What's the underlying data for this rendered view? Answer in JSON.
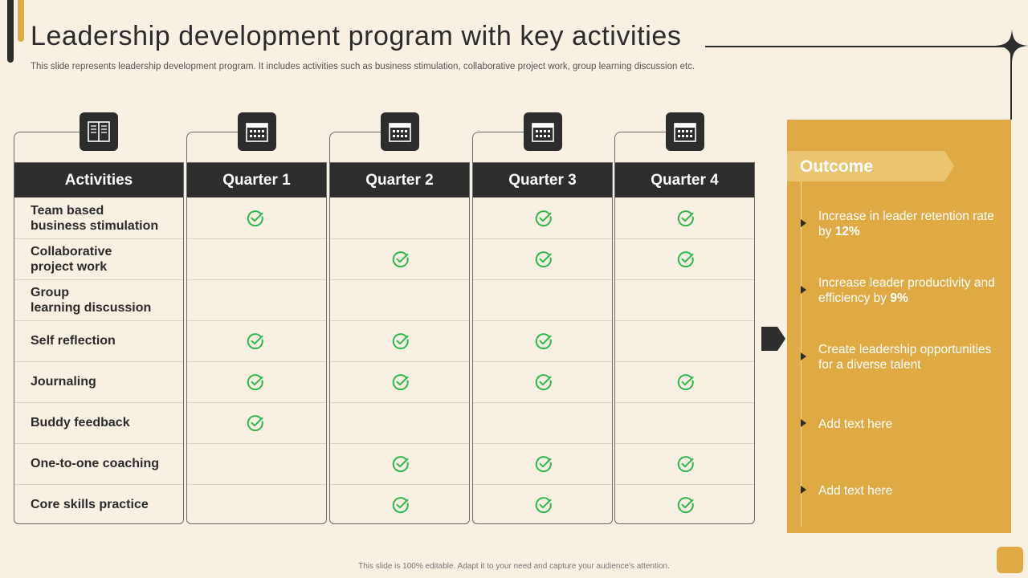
{
  "slide": {
    "title": "Leadership development program with key activities",
    "subtitle": "This slide represents leadership development program. It includes activities such as business stimulation, collaborative project work, group learning discussion etc.",
    "footer": "This slide is 100% editable.  Adapt it to your need and capture your audience's attention."
  },
  "table": {
    "headers": [
      "Activities",
      "Quarter 1",
      "Quarter 2",
      "Quarter 3",
      "Quarter 4"
    ],
    "rows": [
      {
        "label": "Team based\nbusiness stimulation",
        "q": [
          true,
          false,
          true,
          true
        ]
      },
      {
        "label": "Collaborative\nproject work",
        "q": [
          false,
          true,
          true,
          true
        ]
      },
      {
        "label": "Group\nlearning discussion",
        "q": [
          false,
          false,
          false,
          false
        ]
      },
      {
        "label": "Self reflection",
        "q": [
          true,
          true,
          true,
          false
        ]
      },
      {
        "label": "Journaling",
        "q": [
          true,
          true,
          true,
          true
        ]
      },
      {
        "label": "Buddy feedback",
        "q": [
          true,
          false,
          false,
          false
        ]
      },
      {
        "label": "One-to-one coaching",
        "q": [
          false,
          true,
          true,
          true
        ]
      },
      {
        "label": "Core skills practice",
        "q": [
          false,
          true,
          true,
          true
        ]
      }
    ],
    "check_color": "#2db84b"
  },
  "outcome": {
    "title": "Outcome",
    "items": [
      {
        "text": "Increase  in leader retention rate by ",
        "bold": "12%"
      },
      {
        "text": "Increase  leader productivity and efficiency by ",
        "bold": "9%"
      },
      {
        "text": "Create leadership opportunities for a diverse talent",
        "bold": ""
      },
      {
        "text": "Add text here",
        "bold": ""
      },
      {
        "text": "Add text here",
        "bold": ""
      }
    ]
  },
  "colors": {
    "background": "#f8f0e2",
    "dark": "#2d2d2d",
    "accent": "#dfaa44",
    "check": "#2db84b"
  },
  "icons": [
    "book-icon",
    "calendar-icon",
    "calendar-icon",
    "calendar-icon",
    "calendar-icon"
  ]
}
